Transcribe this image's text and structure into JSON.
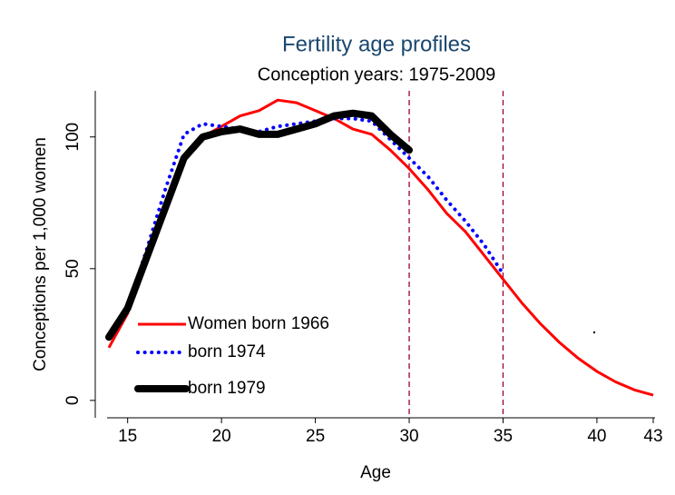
{
  "chart_data": {
    "type": "line",
    "title": "Fertility age profiles",
    "subtitle": "Conception years: 1975-2009",
    "x_label": "Age",
    "y_label": "Conceptions per 1,000 women",
    "x": [
      14,
      15,
      16,
      17,
      18,
      19,
      20,
      21,
      22,
      23,
      24,
      25,
      26,
      27,
      28,
      29,
      30,
      31,
      32,
      33,
      34,
      35,
      36,
      37,
      38,
      39,
      40,
      41,
      42,
      43
    ],
    "series": [
      {
        "name": "Women born 1966",
        "color": "#ff0000",
        "style": "solid",
        "values": [
          20,
          33,
          55,
          75,
          93,
          100,
          104,
          108,
          110,
          114,
          113,
          110,
          107,
          103,
          101,
          95,
          88,
          80,
          71,
          64,
          55,
          46,
          37,
          29,
          22,
          16,
          11,
          7,
          4,
          2
        ]
      },
      {
        "name": "born 1974",
        "color": "#0000ff",
        "style": "dotted",
        "values": [
          24,
          35,
          57,
          80,
          101,
          105,
          104,
          103,
          102,
          104,
          105,
          106,
          107,
          107,
          106,
          99,
          92,
          85,
          76,
          68,
          59,
          48,
          null,
          null,
          null,
          null,
          null,
          null,
          null,
          null
        ]
      },
      {
        "name": "born 1979",
        "color": "#000000",
        "style": "thick",
        "values": [
          24,
          35,
          54,
          73,
          92,
          100,
          102,
          103,
          101,
          101,
          103,
          105,
          108,
          109,
          108,
          101,
          95,
          null,
          null,
          null,
          null,
          null,
          null,
          null,
          null,
          null,
          null,
          null,
          null,
          null
        ]
      }
    ],
    "vlines": [
      30,
      35
    ],
    "vline_color": "#990033",
    "xlim": [
      14,
      43
    ],
    "xticks": [
      15,
      20,
      25,
      30,
      35,
      40,
      43
    ],
    "ylim": [
      -6.6,
      117.5
    ],
    "yticks": [
      0,
      50,
      100
    ],
    "legend": "lower left"
  }
}
